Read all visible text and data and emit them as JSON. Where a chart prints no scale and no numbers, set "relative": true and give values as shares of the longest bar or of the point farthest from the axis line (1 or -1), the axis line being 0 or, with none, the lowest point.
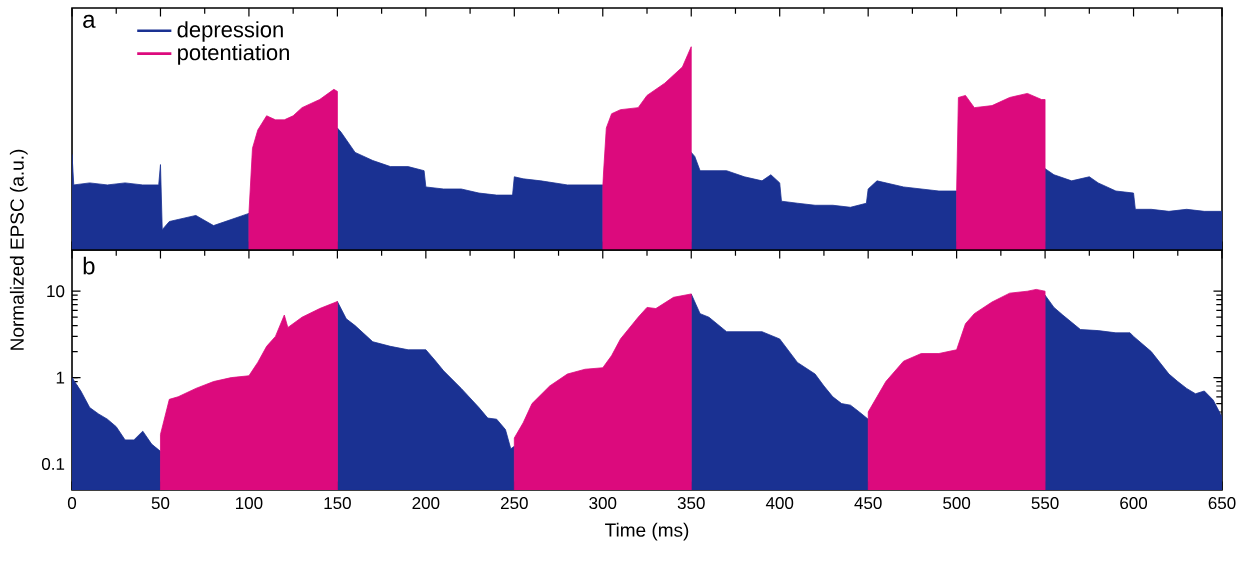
{
  "chart_data": [
    {
      "type": "area",
      "title": "a",
      "relative": true,
      "xlim": [
        0,
        650
      ],
      "xticks": [
        0,
        50,
        100,
        150,
        200,
        250,
        300,
        350,
        400,
        450,
        500,
        550,
        600,
        650
      ],
      "tick_labels": false,
      "legend": "top left",
      "grid": false,
      "series": [
        {
          "name": "depression",
          "color": "#1a3192",
          "x": [
            0,
            1,
            10,
            20,
            30,
            40,
            49,
            50,
            51,
            55,
            60,
            70,
            80,
            90,
            100,
            125,
            150,
            152,
            160,
            170,
            180,
            190,
            199,
            200,
            210,
            220,
            230,
            240,
            249,
            250,
            255,
            265,
            280,
            300,
            325,
            350,
            352,
            355,
            370,
            380,
            390,
            395,
            400,
            401,
            410,
            420,
            430,
            440,
            449,
            450,
            455,
            470,
            490,
            500,
            525,
            550,
            555,
            565,
            575,
            580,
            590,
            600,
            601,
            610,
            620,
            630,
            640,
            650
          ],
          "values": [
            0.47,
            0.32,
            0.33,
            0.32,
            0.33,
            0.32,
            0.32,
            0.42,
            0.1,
            0.14,
            0.15,
            0.17,
            0.12,
            0.15,
            0.18,
            null,
            0.6,
            0.58,
            0.48,
            0.44,
            0.41,
            0.41,
            0.39,
            0.31,
            0.3,
            0.3,
            0.28,
            0.27,
            0.27,
            0.36,
            0.35,
            0.34,
            0.32,
            0.32,
            null,
            0.48,
            0.46,
            0.39,
            0.39,
            0.36,
            0.34,
            0.37,
            0.33,
            0.24,
            0.23,
            0.22,
            0.22,
            0.21,
            0.23,
            0.3,
            0.34,
            0.31,
            0.29,
            0.29,
            null,
            0.4,
            0.37,
            0.34,
            0.36,
            0.33,
            0.29,
            0.28,
            0.2,
            0.2,
            0.19,
            0.2,
            0.19,
            0.19
          ]
        },
        {
          "name": "potentiation",
          "color": "#dc0a7d",
          "x": [
            100,
            102,
            105,
            110,
            115,
            120,
            125,
            130,
            140,
            148,
            150,
            225,
            300,
            302,
            305,
            310,
            320,
            325,
            335,
            345,
            348,
            350,
            425,
            500,
            501,
            505,
            510,
            520,
            530,
            540,
            548,
            550
          ],
          "values": [
            0.18,
            0.5,
            0.59,
            0.66,
            0.64,
            0.64,
            0.66,
            0.7,
            0.74,
            0.79,
            0.78,
            null,
            0.32,
            0.6,
            0.67,
            0.69,
            0.7,
            0.76,
            0.82,
            0.9,
            0.96,
            1,
            null,
            0.29,
            0.75,
            0.76,
            0.7,
            0.71,
            0.75,
            0.77,
            0.74,
            0.74
          ]
        }
      ]
    },
    {
      "type": "area",
      "title": "b",
      "xlabel": "Time (ms)",
      "ylabel": "Normalized EPSC (a.u.)",
      "log": "y",
      "xlim": [
        0,
        650
      ],
      "ylim": [
        0.05,
        30
      ],
      "xticks": [
        0,
        50,
        100,
        150,
        200,
        250,
        300,
        350,
        400,
        450,
        500,
        550,
        600,
        650
      ],
      "yticks": [
        0.1,
        1,
        10
      ],
      "grid": false,
      "series": [
        {
          "color": "#1a3192",
          "x": [
            0,
            5,
            10,
            15,
            20,
            25,
            30,
            35,
            40,
            45,
            50,
            100,
            150,
            155,
            160,
            170,
            180,
            190,
            200,
            205,
            210,
            220,
            230,
            235,
            240,
            245,
            248,
            250,
            300,
            350,
            355,
            360,
            370,
            380,
            390,
            400,
            410,
            420,
            425,
            430,
            435,
            440,
            445,
            450,
            500,
            550,
            555,
            560,
            570,
            580,
            590,
            598,
            600,
            610,
            620,
            625,
            630,
            635,
            640,
            645,
            650
          ],
          "values": [
            1.0,
            0.7,
            0.45,
            0.38,
            0.33,
            0.27,
            0.19,
            0.19,
            0.24,
            0.17,
            0.14,
            null,
            7.6,
            4.8,
            4.0,
            2.6,
            2.3,
            2.1,
            2.1,
            1.6,
            1.2,
            0.75,
            0.45,
            0.34,
            0.33,
            0.25,
            0.15,
            0.16,
            null,
            9.3,
            5.5,
            5.0,
            3.4,
            3.4,
            3.4,
            2.8,
            1.5,
            1.1,
            0.8,
            0.6,
            0.5,
            0.48,
            0.4,
            0.33,
            null,
            9.0,
            6.5,
            5.3,
            3.6,
            3.5,
            3.3,
            3.3,
            3.0,
            2.0,
            1.1,
            0.9,
            0.75,
            0.65,
            0.7,
            0.55,
            0.35
          ]
        },
        {
          "color": "#dc0a7d",
          "x": [
            50,
            55,
            60,
            70,
            80,
            90,
            100,
            105,
            110,
            115,
            120,
            122,
            130,
            140,
            150,
            200,
            250,
            255,
            260,
            270,
            280,
            290,
            300,
            305,
            310,
            320,
            325,
            330,
            340,
            350,
            400,
            450,
            455,
            460,
            470,
            480,
            490,
            500,
            505,
            510,
            520,
            530,
            540,
            545,
            550
          ],
          "values": [
            0.22,
            0.56,
            0.6,
            0.75,
            0.9,
            1.0,
            1.05,
            1.5,
            2.3,
            3.0,
            5.3,
            3.8,
            5.0,
            6.3,
            7.6,
            null,
            0.2,
            0.3,
            0.5,
            0.8,
            1.1,
            1.25,
            1.3,
            1.8,
            2.8,
            5.0,
            6.5,
            6.3,
            8.5,
            9.3,
            null,
            0.4,
            0.6,
            0.9,
            1.55,
            1.9,
            1.9,
            2.1,
            4.2,
            5.5,
            7.5,
            9.5,
            10.0,
            10.5,
            10.0
          ]
        }
      ]
    }
  ]
}
